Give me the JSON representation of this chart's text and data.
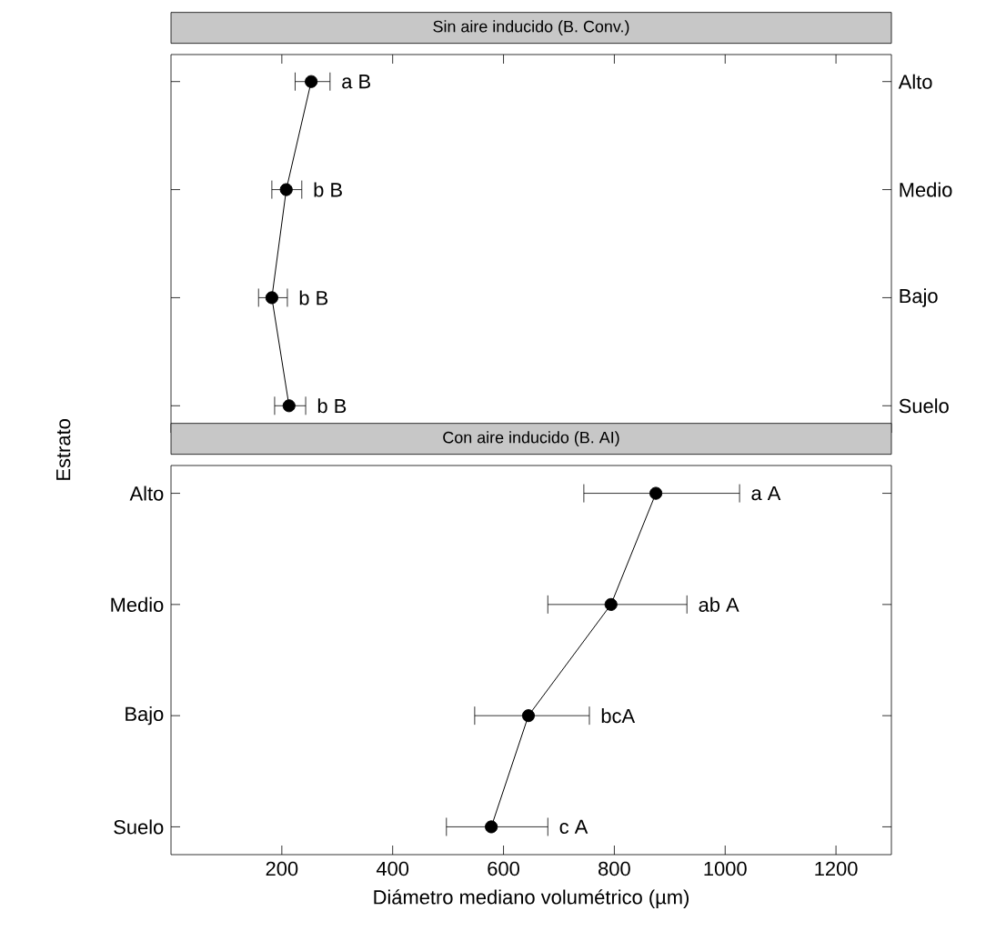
{
  "chart_data": [
    {
      "type": "line",
      "orientation": "horizontal",
      "title": "Sin aire inducido (B. Conv.)",
      "categories": [
        "Alto",
        "Medio",
        "Bajo",
        "Suelo"
      ],
      "series": [
        {
          "color": "#000000",
          "values": [
            253,
            208,
            182,
            213
          ],
          "errors": [
            [
              224,
              287
            ],
            [
              182,
              236
            ],
            [
              158,
              210
            ],
            [
              187,
              243
            ]
          ]
        }
      ],
      "xlim": [
        0,
        1300
      ],
      "xticks": [
        200,
        400,
        600,
        800,
        1000,
        1200
      ],
      "tick_labels": "y",
      "marker": "circle",
      "line_style": "solid",
      "annotations": [
        {
          "text": "a  B",
          "x": 287,
          "y": "Alto"
        },
        {
          "text": "b  B",
          "x": 236,
          "y": "Medio"
        },
        {
          "text": "b  B",
          "x": 210,
          "y": "Bajo"
        },
        {
          "text": "b  B",
          "x": 243,
          "y": "Suelo"
        }
      ]
    },
    {
      "type": "line",
      "orientation": "horizontal",
      "title": "Con aire inducido (B. AI)",
      "xlabel": "Diámetro mediano volumétrico (µm)",
      "ylabel": "Estrato",
      "categories": [
        "Alto",
        "Medio",
        "Bajo",
        "Suelo"
      ],
      "series": [
        {
          "color": "#000000",
          "values": [
            875,
            794,
            645,
            578
          ],
          "errors": [
            [
              745,
              1026
            ],
            [
              680,
              931
            ],
            [
              548,
              755
            ],
            [
              497,
              680
            ]
          ]
        }
      ],
      "xlim": [
        0,
        1300
      ],
      "xticks": [
        200,
        400,
        600,
        800,
        1000,
        1200
      ],
      "marker": "circle",
      "line_style": "solid",
      "annotations": [
        {
          "text": "a  A",
          "x": 1026,
          "y": "Alto"
        },
        {
          "text": "ab A",
          "x": 931,
          "y": "Medio"
        },
        {
          "text": "bcA",
          "x": 755,
          "y": "Bajo"
        },
        {
          "text": "c A",
          "x": 680,
          "y": "Suelo"
        }
      ]
    }
  ]
}
